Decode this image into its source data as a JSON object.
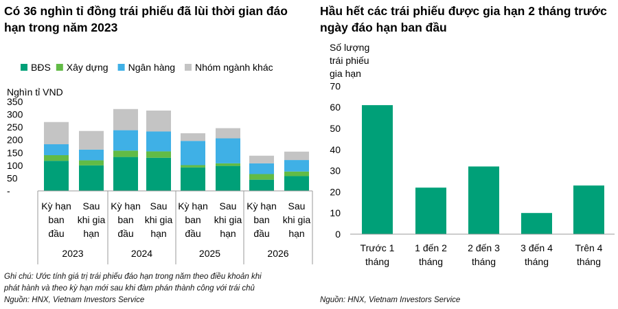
{
  "left_title": "Có 36 nghìn tỉ đồng trái phiếu đã lùi thời gian đáo\nhạn trong năm 2023",
  "right_title": "Hầu hết các trái phiếu được gia hạn 2 tháng trước\nngày đáo hạn ban đầu",
  "left_note": "Ghi chú: Ước tính giá trị trái phiếu đáo hạn trong năm theo điều khoản khi\nphát hành và theo kỳ hạn mới sau khi đàm phán thành công với trái chủ\nNguồn: HNX, Vietnam Investors Service",
  "right_note": "Nguồn: HNX, Vietnam Investors Service",
  "colors": {
    "bds": "#00A078",
    "xay_dung": "#62BB46",
    "ngan_hang": "#3FB0E6",
    "khac": "#C4C4C4",
    "bar": "#00A078"
  },
  "chart_data": [
    {
      "type": "bar",
      "stacked": true,
      "ylabel": "Nghìn tỉ VND",
      "ylim": [
        0,
        350
      ],
      "yticks": [
        "-",
        "50",
        "100",
        "150",
        "200",
        "250",
        "300",
        "350"
      ],
      "legend": "top",
      "groups": [
        {
          "label": "2023",
          "bars": [
            [
              "Kỳ hạn",
              "ban",
              "đầu"
            ],
            [
              "Sau",
              "khi gia",
              "hạn"
            ]
          ]
        },
        {
          "label": "2024",
          "bars": [
            [
              "Kỳ hạn",
              "ban",
              "đầu"
            ],
            [
              "Sau",
              "khi gia",
              "hạn"
            ]
          ]
        },
        {
          "label": "2025",
          "bars": [
            [
              "Kỳ hạn",
              "ban",
              "đầu"
            ],
            [
              "Sau",
              "khi gia",
              "hạn"
            ]
          ]
        },
        {
          "label": "2026",
          "bars": [
            [
              "Kỳ hạn",
              "ban",
              "đầu"
            ],
            [
              "Sau",
              "khi gia",
              "hạn"
            ]
          ]
        }
      ],
      "series": [
        {
          "name": "BĐS",
          "color": "#00A078",
          "values": [
            118,
            100,
            133,
            130,
            92,
            98,
            44,
            58
          ]
        },
        {
          "name": "Xây dựng",
          "color": "#62BB46",
          "values": [
            22,
            20,
            25,
            25,
            9,
            10,
            22,
            18
          ]
        },
        {
          "name": "Ngân hàng",
          "color": "#3FB0E6",
          "values": [
            43,
            42,
            80,
            78,
            95,
            98,
            42,
            45
          ]
        },
        {
          "name": "Nhóm ngành khác",
          "color": "#C4C4C4",
          "values": [
            87,
            73,
            83,
            82,
            30,
            40,
            30,
            33
          ]
        }
      ]
    },
    {
      "type": "bar",
      "ylabel": "Số lượng\ntrái phiếu\ngia hạn",
      "ylim": [
        0,
        70
      ],
      "yticks": [
        "0",
        "10",
        "20",
        "30",
        "40",
        "50",
        "60",
        "70"
      ],
      "categories": [
        [
          "Trước 1",
          "tháng"
        ],
        [
          "1 đến 2",
          "tháng"
        ],
        [
          "2 đến 3",
          "tháng"
        ],
        [
          "3 đến 4",
          "tháng"
        ],
        [
          "Trên 4",
          "tháng"
        ]
      ],
      "values": [
        61,
        22,
        32,
        10,
        23
      ]
    }
  ]
}
